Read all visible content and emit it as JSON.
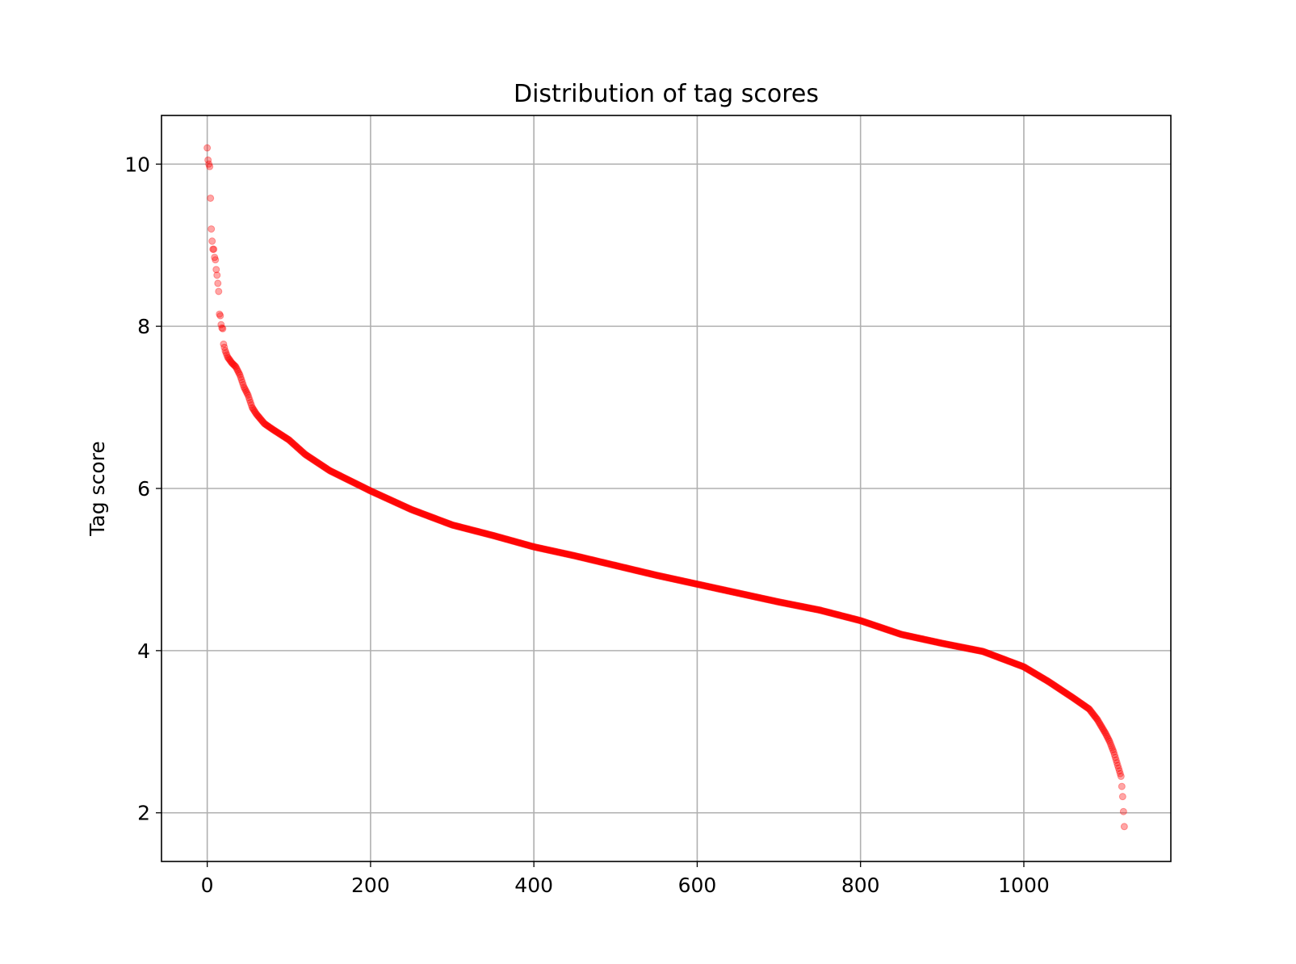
{
  "chart_data": {
    "type": "scatter",
    "title": "Distribution of tag scores",
    "xlabel": "",
    "ylabel": "Tag score",
    "xlim": [
      -56,
      1180
    ],
    "ylim": [
      1.4,
      10.6
    ],
    "xticks": [
      0,
      200,
      400,
      600,
      800,
      1000
    ],
    "yticks": [
      2,
      4,
      6,
      8,
      10
    ],
    "grid": true,
    "legend": "none",
    "marker_color": "#ff0000",
    "marker_alpha": 0.35,
    "point_count": 1124,
    "series": [
      {
        "description_points": "sorted descending score vs rank; key points read off the chart",
        "x": [
          0,
          1,
          2,
          3,
          4,
          5,
          6,
          7,
          8,
          9,
          10,
          11,
          12,
          13,
          14,
          15,
          16,
          17,
          18,
          19,
          20,
          22,
          25,
          30,
          35,
          40,
          45,
          50,
          55,
          60,
          70,
          80,
          100,
          120,
          150,
          200,
          250,
          300,
          350,
          400,
          450,
          500,
          550,
          600,
          650,
          700,
          750,
          800,
          850,
          900,
          950,
          1000,
          1030,
          1060,
          1080,
          1090,
          1100,
          1105,
          1110,
          1113,
          1116,
          1119,
          1121,
          1123
        ],
        "y": [
          10.2,
          10.05,
          10.0,
          9.97,
          9.58,
          9.2,
          9.05,
          8.95,
          8.95,
          8.85,
          8.82,
          8.7,
          8.63,
          8.53,
          8.43,
          8.15,
          8.13,
          8.02,
          7.98,
          7.97,
          7.78,
          7.7,
          7.62,
          7.55,
          7.5,
          7.4,
          7.25,
          7.15,
          7.0,
          6.92,
          6.8,
          6.73,
          6.6,
          6.42,
          6.22,
          5.97,
          5.74,
          5.55,
          5.42,
          5.28,
          5.17,
          5.05,
          4.93,
          4.82,
          4.71,
          4.6,
          4.5,
          4.37,
          4.2,
          4.09,
          3.99,
          3.8,
          3.62,
          3.42,
          3.28,
          3.15,
          2.98,
          2.88,
          2.75,
          2.65,
          2.55,
          2.45,
          2.2,
          1.83
        ]
      }
    ]
  }
}
